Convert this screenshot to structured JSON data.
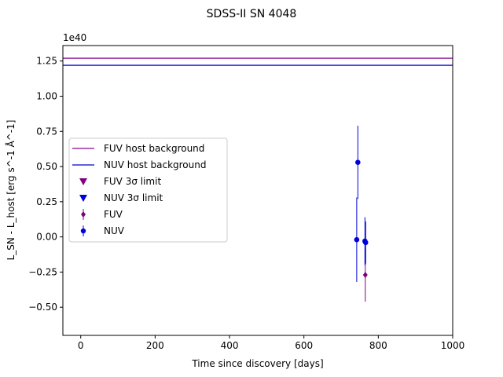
{
  "chart_data": {
    "type": "scatter",
    "title": "SDSS-II SN 4048",
    "xlabel": "Time since discovery [days]",
    "ylabel": "L_SN - L_host [erg s^-1 Å^-1]",
    "y_offset_label": "1e40",
    "y_scale_multiplier": 1e+40,
    "xlim": [
      -48,
      1000
    ],
    "ylim": [
      -0.7,
      1.36
    ],
    "xticks": [
      0,
      200,
      400,
      600,
      800,
      1000
    ],
    "xtick_labels": [
      "0",
      "200",
      "400",
      "600",
      "800",
      "1000"
    ],
    "yticks": [
      -0.5,
      -0.25,
      0.0,
      0.25,
      0.5,
      0.75,
      1.0,
      1.25
    ],
    "ytick_labels": [
      "−0.50",
      "−0.25",
      "0.00",
      "0.25",
      "0.50",
      "0.75",
      "1.00",
      "1.25"
    ],
    "grid": false,
    "legend_position": "center-left",
    "hlines": [
      {
        "name": "FUV host background",
        "y": 1.27,
        "color": "#9b30a6"
      },
      {
        "name": "NUV host background",
        "y": 1.22,
        "color": "#2b2bd9"
      }
    ],
    "limits": [
      {
        "name": "FUV 3σ limit",
        "color": "#7f007f",
        "points": []
      },
      {
        "name": "NUV 3σ limit",
        "color": "#0000dd",
        "points": []
      }
    ],
    "series": [
      {
        "name": "FUV",
        "color": "#7f007f",
        "marker": "diamond",
        "points": [
          {
            "x": 765,
            "y": -0.27,
            "yerr": 0.19
          }
        ]
      },
      {
        "name": "NUV",
        "color": "#0000dd",
        "marker": "circle",
        "points": [
          {
            "x": 742,
            "y": -0.02,
            "yerr": 0.3
          },
          {
            "x": 745,
            "y": 0.53,
            "yerr": 0.26
          },
          {
            "x": 764,
            "y": -0.03,
            "yerr": 0.17
          },
          {
            "x": 766,
            "y": -0.04,
            "yerr": 0.15
          }
        ]
      }
    ],
    "legend": [
      {
        "label": "FUV host background",
        "kind": "line",
        "color": "#9b30a6"
      },
      {
        "label": "NUV host background",
        "kind": "line",
        "color": "#2b2bd9"
      },
      {
        "label": "FUV 3σ limit",
        "kind": "triangle",
        "color": "#7f007f"
      },
      {
        "label": "NUV 3σ limit",
        "kind": "triangle",
        "color": "#0000dd"
      },
      {
        "label": "FUV",
        "kind": "diamond",
        "color": "#7f007f"
      },
      {
        "label": "NUV",
        "kind": "circle",
        "color": "#0000dd"
      }
    ]
  }
}
